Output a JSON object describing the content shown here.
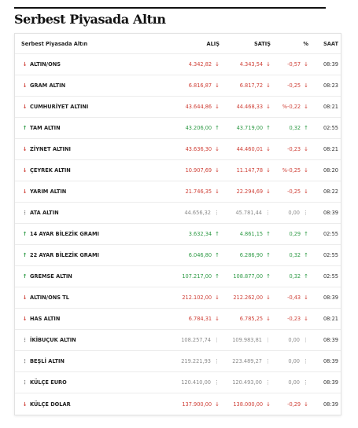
{
  "header": {
    "title": "Serbest Piyasada Altın"
  },
  "table": {
    "columns": [
      "Serbest Piyasada Altın",
      "ALIŞ",
      "SATIŞ",
      "%",
      "SAAT"
    ],
    "trend_colors": {
      "down": "#cf3f36",
      "up": "#2e9a45",
      "flat": "#8a8a8a"
    },
    "rows": [
      {
        "name": "ALTIN/ONS",
        "buy": "4.342,82",
        "sell": "4.343,54",
        "change": "-0,57",
        "time": "08:39",
        "trend": "down"
      },
      {
        "name": "GRAM ALTIN",
        "buy": "6.816,87",
        "sell": "6.817,72",
        "change": "-0,25",
        "time": "08:23",
        "trend": "down"
      },
      {
        "name": "CUMHURİYET ALTINI",
        "buy": "43.644,86",
        "sell": "44.468,33",
        "change": "%-0,22",
        "time": "08:21",
        "trend": "down"
      },
      {
        "name": "TAM ALTIN",
        "buy": "43.206,00",
        "sell": "43.719,00",
        "change": "0,32",
        "time": "02:55",
        "trend": "up"
      },
      {
        "name": "ZİYNET ALTINI",
        "buy": "43.636,30",
        "sell": "44.460,01",
        "change": "-0,23",
        "time": "08:21",
        "trend": "down"
      },
      {
        "name": "ÇEYREK ALTIN",
        "buy": "10.907,69",
        "sell": "11.147,78",
        "change": "%-0,25",
        "time": "08:20",
        "trend": "down"
      },
      {
        "name": "YARIM ALTIN",
        "buy": "21.746,35",
        "sell": "22.294,69",
        "change": "-0,25",
        "time": "08:22",
        "trend": "down"
      },
      {
        "name": "ATA ALTIN",
        "buy": "44.656,32",
        "sell": "45.781,44",
        "change": "0,00",
        "time": "08:39",
        "trend": "flat"
      },
      {
        "name": "14 AYAR BİLEZİK GRAMI",
        "buy": "3.632,34",
        "sell": "4.861,15",
        "change": "0,29",
        "time": "02:55",
        "trend": "up"
      },
      {
        "name": "22 AYAR BİLEZİK GRAMI",
        "buy": "6.046,80",
        "sell": "6.286,90",
        "change": "0,32",
        "time": "02:55",
        "trend": "up"
      },
      {
        "name": "GREMSE ALTIN",
        "buy": "107.217,00",
        "sell": "108.877,00",
        "change": "0,32",
        "time": "02:55",
        "trend": "up"
      },
      {
        "name": "ALTIN/ONS TL",
        "buy": "212.102,00",
        "sell": "212.262,00",
        "change": "-0,43",
        "time": "08:39",
        "trend": "down"
      },
      {
        "name": "HAS ALTIN",
        "buy": "6.784,31",
        "sell": "6.785,25",
        "change": "-0,23",
        "time": "08:21",
        "trend": "down"
      },
      {
        "name": "İKİBUÇUK ALTIN",
        "buy": "108.257,74",
        "sell": "109.983,81",
        "change": "0,00",
        "time": "08:39",
        "trend": "flat"
      },
      {
        "name": "BEŞLİ ALTIN",
        "buy": "219.221,93",
        "sell": "223.489,27",
        "change": "0,00",
        "time": "08:39",
        "trend": "flat"
      },
      {
        "name": "KÜLÇE EURO",
        "buy": "120.410,00",
        "sell": "120.493,00",
        "change": "0,00",
        "time": "08:39",
        "trend": "flat"
      },
      {
        "name": "KÜLÇE DOLAR",
        "buy": "137.900,00",
        "sell": "138.000,00",
        "change": "-0,29",
        "time": "08:39",
        "trend": "down"
      }
    ]
  }
}
